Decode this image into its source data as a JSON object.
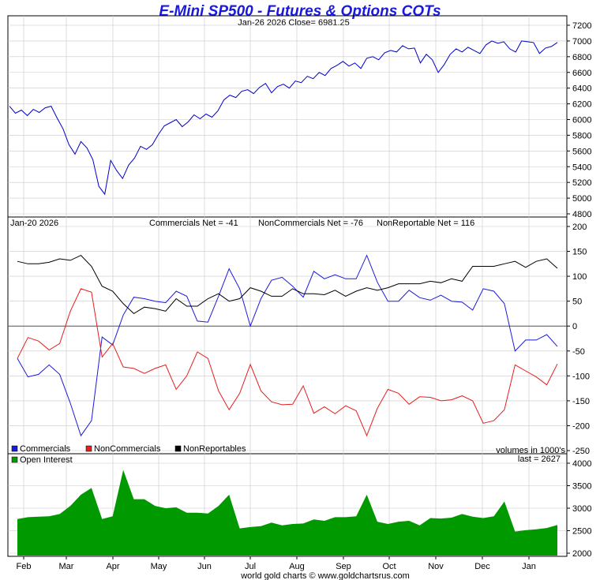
{
  "title": "E-Mini SP500 - Futures & Options COTs",
  "price_info": "Jan-26  2026   Close= 6981.25",
  "cot_date": "Jan-20  2026",
  "cot_summary": {
    "commercials": "Commercials Net = -41",
    "noncommercials": "NonCommercials Net = -76",
    "nonreportable": "NonReportable Net = 116"
  },
  "legend": {
    "commercials": "Commercials",
    "noncommercials": "NonCommercials",
    "nonreportables": "NonReportables",
    "open_interest": "Open Interest",
    "volumes_note": "volumes in 1000's",
    "last": "last = 2627"
  },
  "footer": "world gold charts © www.goldchartsrus.com",
  "colors": {
    "title": "#1a1adc",
    "price_line": "#0000cc",
    "commercials": "#1a1adc",
    "noncommercials": "#e61e1e",
    "nonreportables": "#000000",
    "open_interest": "#009900",
    "grid": "#c8c8c8"
  },
  "chart_data": [
    {
      "type": "line",
      "title": "",
      "ylim": [
        4800,
        7200
      ],
      "yticks": [
        4800,
        5000,
        5200,
        5400,
        5600,
        5800,
        6000,
        6200,
        6400,
        6600,
        6800,
        7000,
        7200
      ],
      "series": [
        {
          "values": [
            6170,
            6080,
            6120,
            6050,
            6130,
            6090,
            6150,
            6170,
            6020,
            5880,
            5680,
            5560,
            5720,
            5640,
            5490,
            5150,
            5050,
            5480,
            5350,
            5250,
            5420,
            5510,
            5660,
            5620,
            5680,
            5810,
            5920,
            5960,
            6000,
            5910,
            5970,
            6060,
            6010,
            6070,
            6030,
            6110,
            6250,
            6310,
            6280,
            6360,
            6380,
            6330,
            6410,
            6460,
            6340,
            6420,
            6450,
            6400,
            6490,
            6470,
            6550,
            6520,
            6600,
            6560,
            6650,
            6690,
            6740,
            6680,
            6720,
            6650,
            6780,
            6800,
            6760,
            6850,
            6880,
            6860,
            6940,
            6900,
            6910,
            6720,
            6830,
            6760,
            6600,
            6700,
            6830,
            6900,
            6860,
            6920,
            6880,
            6840,
            6950,
            7000,
            6970,
            6990,
            6900,
            6860,
            7000,
            6990,
            6980,
            6840,
            6910,
            6930,
            6981
          ]
        }
      ]
    },
    {
      "type": "line",
      "title": "",
      "ylim": [
        -250,
        200
      ],
      "yticks": [
        -250,
        -200,
        -150,
        -100,
        -50,
        0,
        50,
        100,
        150,
        200
      ],
      "x_labels": [
        "Feb",
        "Mar",
        "Apr",
        "May",
        "Jun",
        "Jul",
        "Aug",
        "Sep",
        "Oct",
        "Nov",
        "Dec",
        "Jan"
      ],
      "series": [
        {
          "name": "Commercials",
          "values": [
            -65,
            -102,
            -97,
            -78,
            -97,
            -155,
            -220,
            -190,
            -22,
            -38,
            22,
            58,
            55,
            50,
            47,
            70,
            60,
            10,
            8,
            60,
            115,
            75,
            0,
            55,
            92,
            98,
            80,
            58,
            110,
            95,
            103,
            95,
            95,
            142,
            88,
            50,
            50,
            72,
            57,
            52,
            62,
            50,
            48,
            32,
            75,
            70,
            45,
            -50,
            -28,
            -28,
            -17,
            -41
          ]
        },
        {
          "name": "NonCommercials",
          "values": [
            -65,
            -23,
            -30,
            -48,
            -35,
            30,
            75,
            68,
            -62,
            -35,
            -82,
            -85,
            -95,
            -85,
            -78,
            -127,
            -100,
            -52,
            -65,
            -130,
            -168,
            -135,
            -77,
            -130,
            -152,
            -158,
            -157,
            -120,
            -175,
            -162,
            -176,
            -160,
            -170,
            -220,
            -165,
            -127,
            -135,
            -157,
            -142,
            -143,
            -150,
            -148,
            -140,
            -150,
            -195,
            -190,
            -168,
            -78,
            -90,
            -102,
            -118,
            -76
          ]
        },
        {
          "name": "NonReportables",
          "values": [
            130,
            125,
            125,
            128,
            135,
            132,
            142,
            120,
            80,
            70,
            45,
            25,
            38,
            35,
            30,
            55,
            40,
            40,
            55,
            65,
            50,
            55,
            77,
            70,
            60,
            60,
            75,
            65,
            65,
            63,
            72,
            60,
            70,
            77,
            72,
            77,
            85,
            85,
            85,
            90,
            87,
            95,
            90,
            120,
            120,
            120,
            125,
            130,
            118,
            130,
            135,
            116
          ]
        }
      ]
    },
    {
      "type": "area",
      "title": "",
      "ylim": [
        2000,
        4000
      ],
      "yticks": [
        2000,
        2500,
        3000,
        3500,
        4000
      ],
      "series": [
        {
          "name": "Open Interest",
          "values": [
            2760,
            2800,
            2810,
            2820,
            2870,
            3050,
            3300,
            3450,
            2760,
            2820,
            3850,
            3200,
            3200,
            3050,
            3000,
            3020,
            2900,
            2900,
            2880,
            3050,
            3300,
            2550,
            2580,
            2600,
            2680,
            2620,
            2650,
            2660,
            2750,
            2720,
            2800,
            2800,
            2820,
            3300,
            2700,
            2650,
            2700,
            2720,
            2620,
            2780,
            2770,
            2790,
            2870,
            2810,
            2780,
            2820,
            3150,
            2480,
            2510,
            2530,
            2560,
            2627
          ]
        }
      ]
    }
  ]
}
